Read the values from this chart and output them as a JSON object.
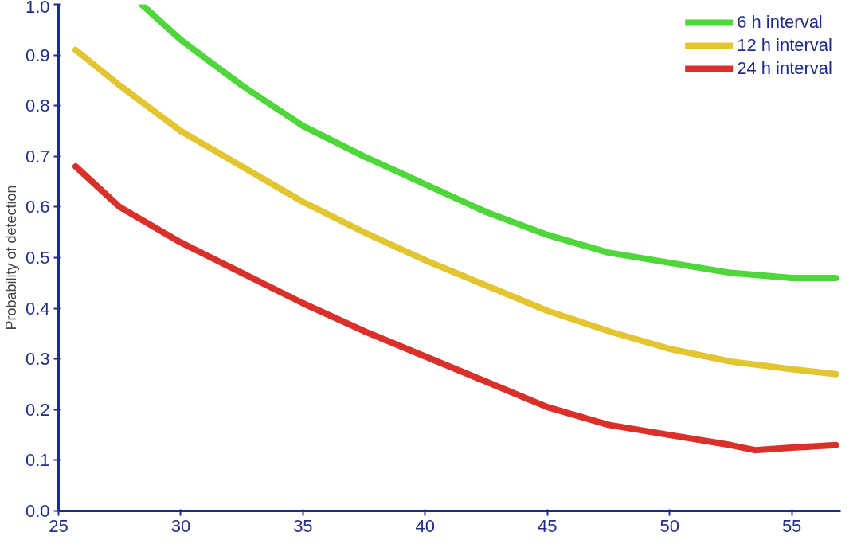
{
  "chart_data": {
    "type": "line",
    "ylabel": "Probability of detection",
    "xlim": [
      25,
      57
    ],
    "ylim": [
      0,
      1
    ],
    "xticks": [
      25,
      30,
      35,
      40,
      45,
      50,
      55
    ],
    "yticks": [
      {
        "value": 0,
        "label": "0.0"
      },
      0.1,
      0.2,
      0.3,
      0.4,
      0.5,
      0.6,
      0.7,
      0.8,
      0.9,
      {
        "value": 1,
        "label": "1.0"
      }
    ],
    "grid": false,
    "legend": "top right",
    "marker": "none",
    "line_style": "solid",
    "series": [
      {
        "name": "6 h interval",
        "color": "#4fd63a",
        "x": [
          28.4,
          30,
          32.5,
          35,
          37.5,
          40,
          42.5,
          45,
          47.5,
          50,
          52.5,
          55,
          56.8
        ],
        "values": [
          1.0,
          0.93,
          0.84,
          0.76,
          0.7,
          0.645,
          0.59,
          0.545,
          0.51,
          0.49,
          0.47,
          0.46,
          0.46
        ]
      },
      {
        "name": "12 h interval",
        "color": "#e3c532",
        "x": [
          25.7,
          27.5,
          30,
          32.5,
          35,
          37.5,
          40,
          42.5,
          45,
          47.5,
          50,
          52.5,
          55,
          56.8
        ],
        "values": [
          0.91,
          0.84,
          0.75,
          0.68,
          0.61,
          0.55,
          0.495,
          0.445,
          0.395,
          0.355,
          0.32,
          0.295,
          0.28,
          0.27
        ]
      },
      {
        "name": "24 h interval",
        "color": "#d9302a",
        "x": [
          25.7,
          27.5,
          30,
          32.5,
          35,
          37.5,
          40,
          42.5,
          45,
          47.5,
          50,
          52.5,
          53.5,
          55,
          56.8
        ],
        "values": [
          0.68,
          0.6,
          0.53,
          0.47,
          0.41,
          0.355,
          0.305,
          0.255,
          0.205,
          0.17,
          0.15,
          0.13,
          0.12,
          0.125,
          0.13
        ]
      }
    ]
  }
}
